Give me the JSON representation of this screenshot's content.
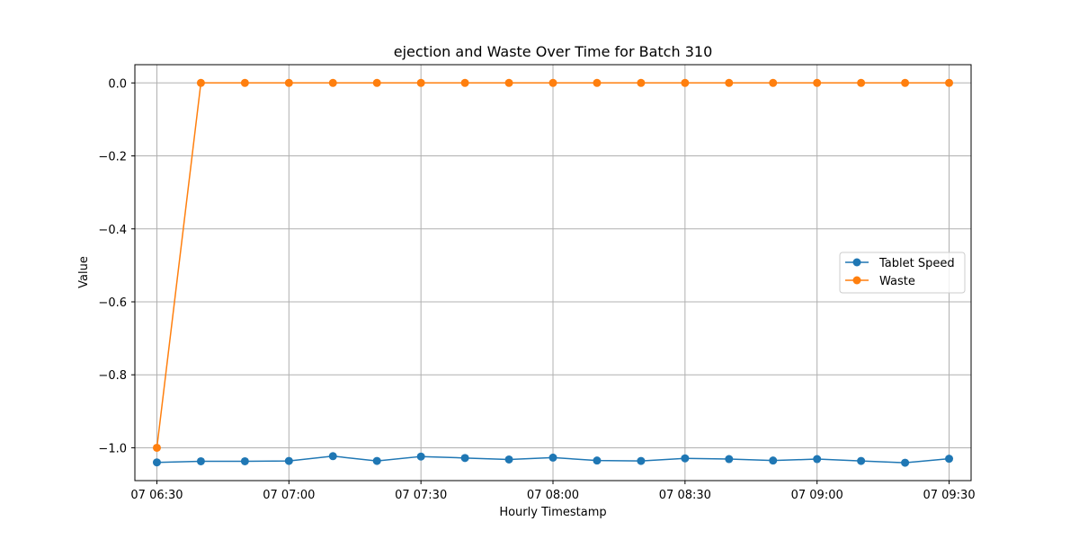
{
  "chart_data": {
    "type": "line",
    "title": "ejection and Waste Over Time for Batch 310",
    "xlabel": "Hourly Timestamp",
    "ylabel": "Value",
    "x": [
      "06:30",
      "06:40",
      "06:50",
      "07:00",
      "07:10",
      "07:20",
      "07:30",
      "07:40",
      "07:50",
      "08:00",
      "08:10",
      "08:20",
      "08:30",
      "08:40",
      "08:50",
      "09:00",
      "09:10",
      "09:20",
      "09:30"
    ],
    "xlim": [
      "06:25",
      "09:35"
    ],
    "ylim": [
      -1.09,
      0.05
    ],
    "x_ticks": [
      "07 06:30",
      "07 07:00",
      "07 07:30",
      "07 08:00",
      "07 08:30",
      "07 09:00",
      "07 09:30"
    ],
    "x_tick_positions": [
      "06:30",
      "07:00",
      "07:30",
      "08:00",
      "08:30",
      "09:00",
      "09:30"
    ],
    "y_ticks": [
      0.0,
      -0.2,
      -0.4,
      -0.6,
      -0.8,
      -1.0
    ],
    "y_tick_labels": [
      "0.0",
      "−0.2",
      "−0.4",
      "−0.6",
      "−0.8",
      "−1.0"
    ],
    "grid": true,
    "legend_position": "center-right",
    "series": [
      {
        "name": "Tablet Speed",
        "color": "#1f77b4",
        "values": [
          -1.04,
          -1.037,
          -1.037,
          -1.036,
          -1.023,
          -1.036,
          -1.024,
          -1.028,
          -1.032,
          -1.027,
          -1.035,
          -1.036,
          -1.029,
          -1.031,
          -1.035,
          -1.031,
          -1.036,
          -1.041,
          -1.03
        ]
      },
      {
        "name": "Waste",
        "color": "#ff7f0e",
        "values": [
          -1.0,
          0.0,
          0.0,
          0.0,
          0.0,
          0.0,
          0.0,
          0.0,
          0.0,
          0.0,
          0.0,
          0.0,
          0.0,
          0.0,
          0.0,
          0.0,
          0.0,
          0.0,
          0.0
        ]
      }
    ]
  }
}
